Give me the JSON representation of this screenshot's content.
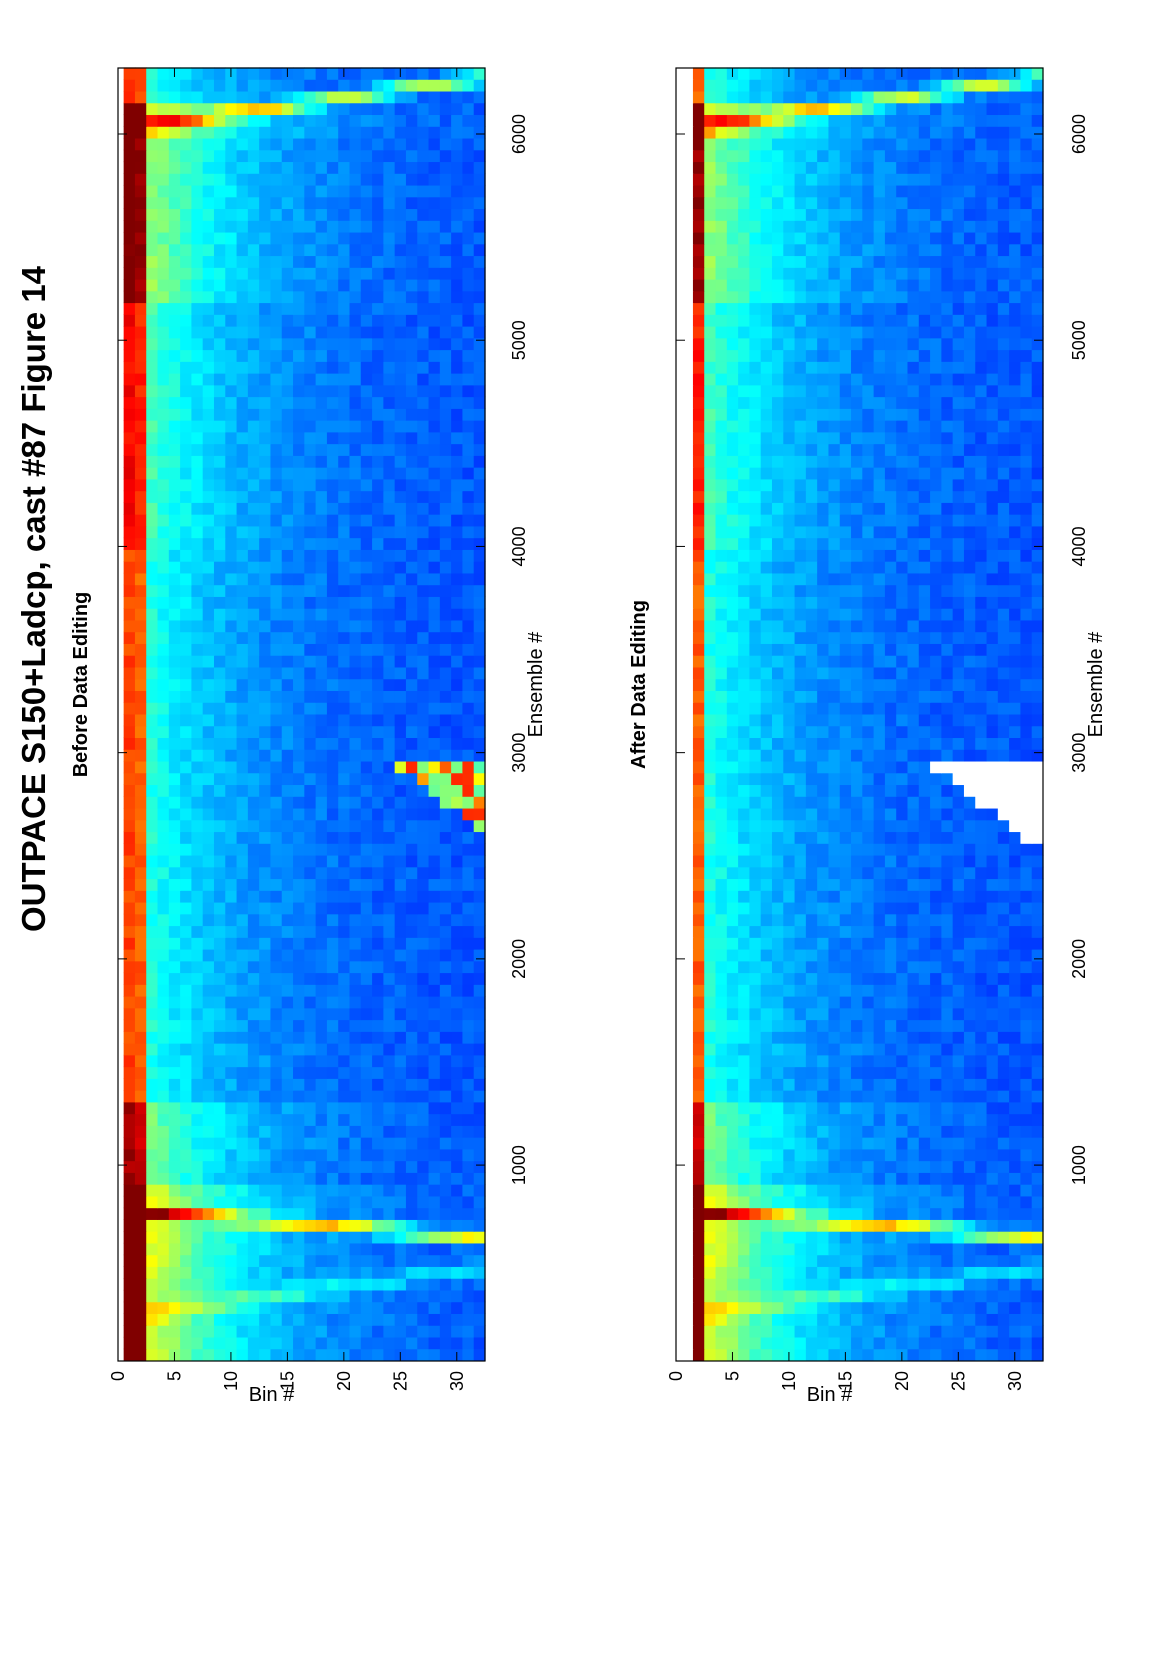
{
  "figure": {
    "title": "OUTPACE S150+Ladcp, cast #87  Figure 14"
  },
  "chart_data": [
    {
      "type": "heatmap",
      "title": "Before Data Editing",
      "xlabel": "Ensemble #",
      "ylabel": "Bin #",
      "xlim": [
        50,
        6320
      ],
      "ylim": [
        0,
        32.5
      ],
      "x_ticks": [
        1000,
        2000,
        3000,
        4000,
        5000,
        6000
      ],
      "y_ticks": [
        0,
        5,
        10,
        15,
        20,
        25,
        30
      ],
      "colormap": "jet",
      "anomaly": {
        "ensemble_range": [
          2630,
          2960
        ],
        "bin_range": [
          23.5,
          32.5
        ]
      },
      "blanked_region": null
    },
    {
      "type": "heatmap",
      "title": "After Data Editing",
      "xlabel": "Ensemble #",
      "ylabel": "Bin #",
      "xlim": [
        50,
        6320
      ],
      "ylim": [
        0,
        32.5
      ],
      "x_ticks": [
        1000,
        2000,
        3000,
        4000,
        5000,
        6000
      ],
      "y_ticks": [
        0,
        5,
        10,
        15,
        20,
        25,
        30
      ],
      "colormap": "jet",
      "anomaly": null,
      "blanked_region": {
        "ensemble_range": [
          2580,
          2960
        ],
        "bin_range": [
          21.5,
          32.5
        ]
      }
    }
  ]
}
